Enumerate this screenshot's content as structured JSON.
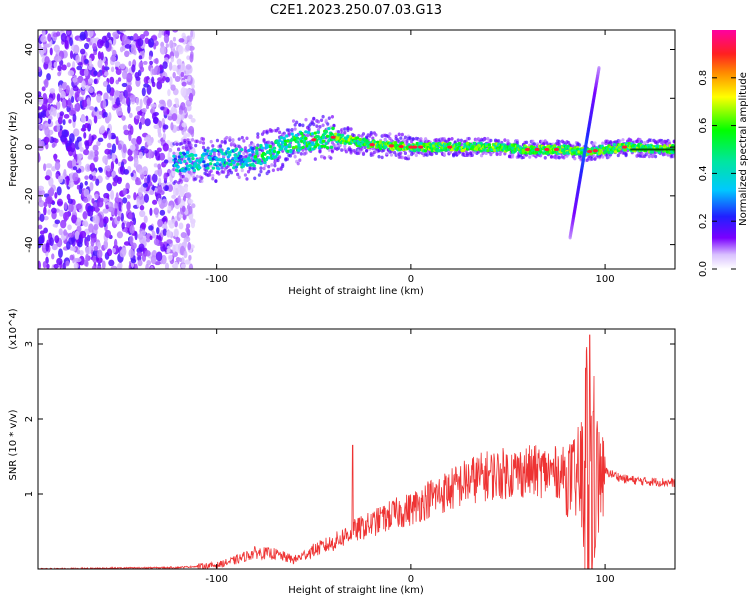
{
  "title": "C2E1.2023.250.07.03.G13",
  "chart_data": [
    {
      "type": "heatmap",
      "xlabel": "Height of straight line (km)",
      "ylabel": "Frequency (Hz)",
      "xlim": [
        -192,
        136
      ],
      "ylim": [
        -50,
        48
      ],
      "x_ticks": [
        -100,
        0,
        100
      ],
      "y_ticks": [
        -40,
        -20,
        0,
        20,
        40
      ],
      "colorbar": {
        "label": "Normalized spectral amplitude",
        "range": [
          0,
          1
        ],
        "ticks": [
          "0.0",
          "0.2",
          "0.4",
          "0.6",
          "0.8"
        ]
      },
      "ridge": {
        "description_points_x": [
          -120,
          -100,
          -80,
          -60,
          -40,
          -20,
          0,
          20,
          40,
          60,
          80,
          90,
          100,
          110,
          136
        ],
        "description_points_y": [
          -6,
          -5,
          -4,
          2,
          4,
          1,
          0,
          0,
          0,
          -1,
          -1,
          -2,
          -1,
          0,
          -1
        ],
        "streak": {
          "x": [
            82,
            97
          ],
          "y": [
            -37,
            33
          ]
        }
      }
    },
    {
      "type": "line",
      "xlabel": "Height of straight line (km)",
      "ylabel": "SNR (10 * v/v)",
      "y_multiplier": "(x10^4)",
      "xlim": [
        -192,
        136
      ],
      "ylim": [
        0,
        3.2
      ],
      "x_ticks": [
        -100,
        0,
        100
      ],
      "y_ticks": [
        1,
        2,
        3
      ],
      "color": "#ee3333",
      "envelope_x": [
        -192,
        -120,
        -100,
        -90,
        -80,
        -70,
        -60,
        -50,
        -40,
        -30,
        -20,
        -10,
        0,
        10,
        20,
        30,
        40,
        50,
        60,
        70,
        80,
        85,
        88,
        90,
        92,
        95,
        100,
        110,
        120,
        136
      ],
      "envelope_y": [
        0.0,
        0.02,
        0.05,
        0.12,
        0.22,
        0.2,
        0.12,
        0.25,
        0.35,
        0.5,
        0.6,
        0.72,
        0.8,
        0.95,
        1.05,
        1.18,
        1.25,
        1.28,
        1.3,
        1.3,
        1.28,
        1.35,
        1.6,
        2.4,
        3.1,
        1.7,
        1.3,
        1.2,
        1.17,
        1.15
      ],
      "spikes": [
        {
          "x": -30,
          "y": 1.65
        },
        {
          "x": -15,
          "y": 0.75
        },
        {
          "x": 92,
          "y": 3.12
        },
        {
          "x": 94,
          "y": 2.1
        }
      ]
    }
  ]
}
